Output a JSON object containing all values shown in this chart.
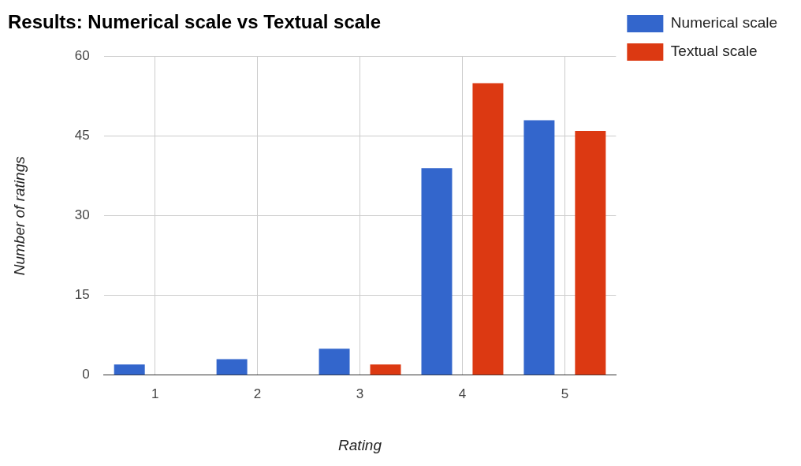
{
  "chart_data": {
    "type": "bar",
    "title": "Results: Numerical scale vs Textual scale",
    "xlabel": "Rating",
    "ylabel": "Number of ratings",
    "categories": [
      "1",
      "2",
      "3",
      "4",
      "5"
    ],
    "series": [
      {
        "name": "Numerical scale",
        "color": "#3366cc",
        "values": [
          2,
          3,
          5,
          39,
          48
        ]
      },
      {
        "name": "Textual scale",
        "color": "#dc3912",
        "values": [
          0,
          0,
          2,
          55,
          46
        ]
      }
    ],
    "ylim": [
      0,
      60
    ],
    "yticks": [
      0,
      15,
      30,
      45,
      60
    ],
    "grid": true,
    "legend": "top right"
  }
}
